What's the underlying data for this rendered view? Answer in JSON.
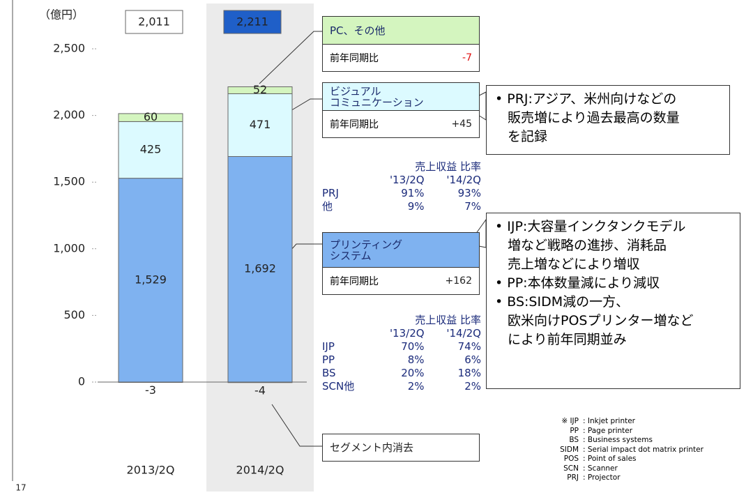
{
  "chart_data": {
    "type": "bar",
    "stacked": true,
    "y_axis_label": "（億円）",
    "categories": [
      "2013/2Q",
      "2014/2Q"
    ],
    "ylim": [
      0,
      2500
    ],
    "yticks": [
      0,
      {
        "value": 500,
        "label": "500"
      },
      {
        "value": 1000,
        "label": "1,000"
      },
      {
        "value": 1500,
        "label": "1,500"
      },
      {
        "value": 2000,
        "label": "2,000"
      },
      {
        "value": 2500,
        "label": "2,500"
      }
    ],
    "series": [
      {
        "name": "プリンティング\nシステム",
        "color": "#7fb2f0",
        "values": [
          1529,
          1692
        ],
        "value_labels": [
          "1,529",
          "1,692"
        ],
        "change_caption": "前年同期比",
        "change": {
          "value": 162,
          "label": "+162"
        }
      },
      {
        "name": "ビジュアル\nコミュニケーション",
        "color": "#dcfaff",
        "values": [
          425,
          471
        ],
        "value_labels": [
          "425",
          "471"
        ],
        "change_caption": "前年同期比",
        "change": {
          "value": 45,
          "label": "+45"
        }
      },
      {
        "name": "PC、その他",
        "color": "#d4f5bf",
        "values": [
          60,
          52
        ],
        "value_labels": [
          "60",
          "52"
        ],
        "change_caption": "前年同期比",
        "change": -7
      },
      {
        "name": "セグメント内消去",
        "color": "#ffffff",
        "values": [
          -3,
          -4
        ],
        "value_labels": [
          "-3",
          "-4"
        ]
      }
    ],
    "totals": [
      2011,
      2211
    ],
    "total_labels": [
      "2,011",
      "2,211"
    ],
    "total_colors": [
      "#ffffff",
      "#1f5fc8"
    ]
  },
  "tables": [
    {
      "header": [
        "売上収益 比率",
        "'13/2Q",
        "'14/2Q"
      ],
      "rows": [
        [
          "PRJ",
          "91%",
          "93%"
        ],
        [
          "他",
          "9%",
          "7%"
        ]
      ]
    },
    {
      "header": [
        "売上収益 比率",
        "'13/2Q",
        "'14/2Q"
      ],
      "rows": [
        [
          "IJP",
          "70%",
          "74%"
        ],
        [
          "PP",
          "8%",
          "6%"
        ],
        [
          "BS",
          "20%",
          "18%"
        ],
        [
          "SCN他",
          "2%",
          "2%"
        ]
      ]
    }
  ],
  "notes": [
    [
      "PRJ:アジア、米州向けなどの\n販売増により過去最高の数量\nを記録"
    ],
    [
      "IJP:大容量インクタンクモデル\n増など戦略の進捗、消耗品\n売上増などにより増収",
      "PP:本体数量減により減収",
      "BS:SIDM減の一方、\n欧米向けPOSプリンター増など\nにより前年同期並み"
    ]
  ],
  "glossary": [
    [
      "※ IJP",
      ": Inkjet printer"
    ],
    [
      "PP",
      ": Page printer"
    ],
    [
      "BS",
      ": Business systems"
    ],
    [
      "SIDM",
      ": Serial impact dot matrix printer"
    ],
    [
      "POS",
      ": Point of sales"
    ],
    [
      "SCN",
      ": Scanner"
    ],
    [
      "PRJ",
      ": Projector"
    ]
  ],
  "page_number": "17"
}
